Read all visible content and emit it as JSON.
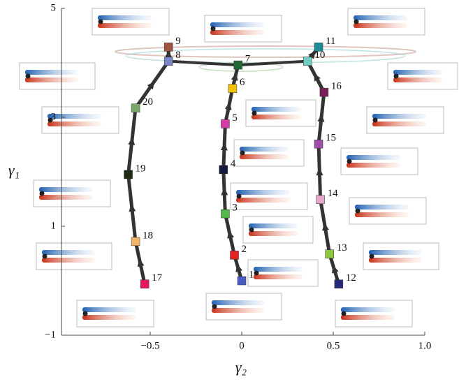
{
  "chart_data": {
    "type": "line",
    "x_label": "γ₂",
    "y_label": "γ₁",
    "xlim": [
      -1,
      1
    ],
    "ylim": [
      -1,
      5
    ],
    "xticks": [
      {
        "value": -0.5,
        "label": "−0.5"
      },
      0,
      0.5,
      {
        "value": 1,
        "label": "1.0"
      }
    ],
    "yticks": [
      {
        "value": -1,
        "label": "−1"
      },
      1,
      3,
      5
    ],
    "line_color": "#333333",
    "series": [
      {
        "labels": [
          "17",
          "18",
          "19",
          "20",
          "8",
          "9"
        ],
        "x": [
          -0.53,
          -0.58,
          -0.62,
          -0.58,
          -0.4,
          -0.4
        ],
        "values": [
          -0.06,
          0.72,
          1.95,
          3.17,
          4.03,
          4.29
        ],
        "colors": [
          "#e8175d",
          "#f2b36b",
          "#1f2a12",
          "#7aa86a",
          "#7d86c8",
          "#a05540"
        ]
      },
      {
        "labels": [
          "1",
          "2",
          "3",
          "4",
          "5",
          "6",
          "7"
        ],
        "x": [
          0.0,
          -0.04,
          -0.09,
          -0.1,
          -0.09,
          -0.05,
          -0.02
        ],
        "values": [
          0.0,
          0.47,
          1.23,
          2.04,
          2.88,
          3.53,
          3.96
        ],
        "colors": [
          "#4a5bc4",
          "#e52222",
          "#52b84a",
          "#141a3c",
          "#d63aa8",
          "#f2c200",
          "#1f6b33"
        ]
      },
      {
        "labels": [
          "12",
          "13",
          "14",
          "15",
          "16",
          "10",
          "11"
        ],
        "x": [
          0.53,
          0.48,
          0.43,
          0.42,
          0.45,
          0.36,
          0.42
        ],
        "values": [
          -0.06,
          0.49,
          1.49,
          2.51,
          3.46,
          4.03,
          4.29
        ],
        "colors": [
          "#232a7a",
          "#8dc63f",
          "#e6a8c8",
          "#a04ca8",
          "#7a1f5a",
          "#6fcfc0",
          "#1b8c94"
        ]
      }
    ]
  }
}
